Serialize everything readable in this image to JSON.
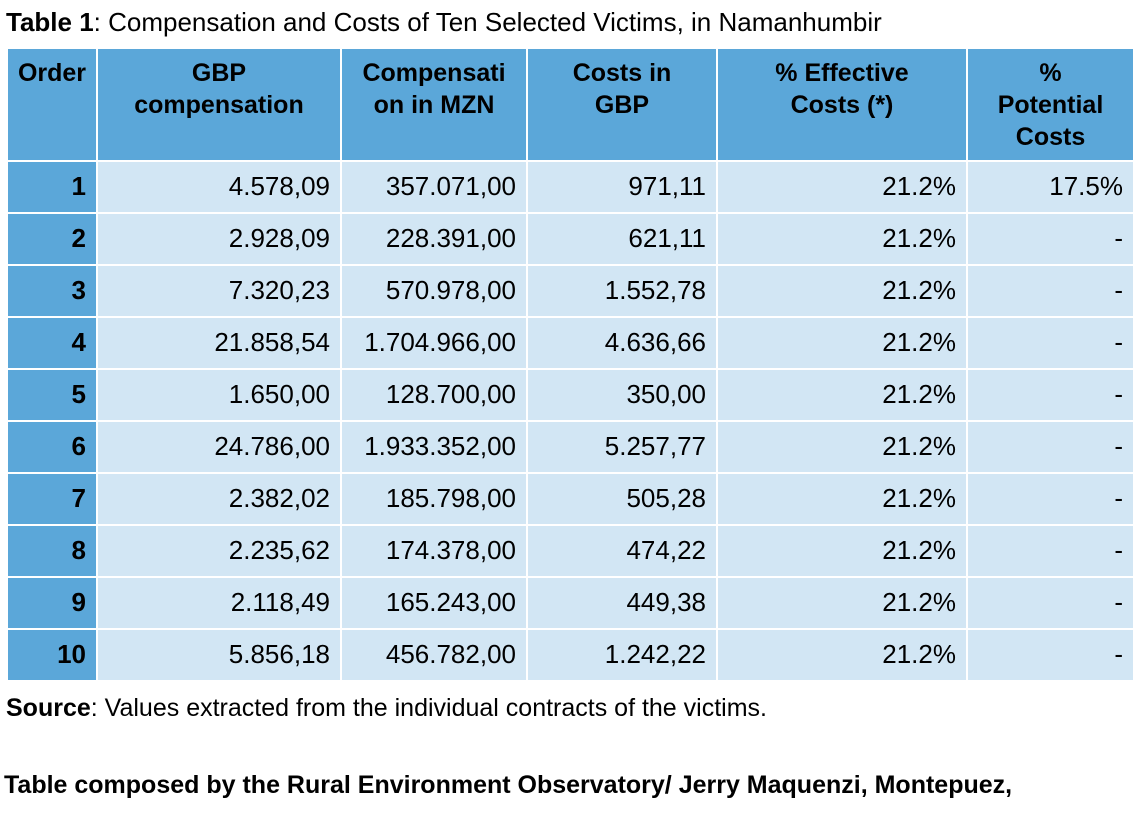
{
  "caption": {
    "bold": "Table 1",
    "rest": ": Compensation and Costs of Ten Selected Victims, in Namanhumbir"
  },
  "table": {
    "headers": [
      "Order",
      "GBP\ncompensation",
      "Compensati\non in MZN",
      "Costs in\nGBP",
      "% Effective\nCosts (*)",
      "%\nPotential\nCosts"
    ],
    "rows": [
      {
        "cells": [
          "1",
          "4.578,09",
          "357.071,00",
          "971,11",
          "21.2%",
          "17.5%"
        ]
      },
      {
        "cells": [
          "2",
          "2.928,09",
          "228.391,00",
          "621,11",
          "21.2%",
          "-"
        ]
      },
      {
        "cells": [
          "3",
          "7.320,23",
          "570.978,00",
          "1.552,78",
          "21.2%",
          "-"
        ]
      },
      {
        "cells": [
          "4",
          "21.858,54",
          "1.704.966,00",
          "4.636,66",
          "21.2%",
          "-"
        ]
      },
      {
        "cells": [
          "5",
          "1.650,00",
          "128.700,00",
          "350,00",
          "21.2%",
          "-"
        ]
      },
      {
        "cells": [
          "6",
          "24.786,00",
          "1.933.352,00",
          "5.257,77",
          "21.2%",
          "-"
        ]
      },
      {
        "cells": [
          "7",
          "2.382,02",
          "185.798,00",
          "505,28",
          "21.2%",
          "-"
        ]
      },
      {
        "cells": [
          "8",
          "2.235,62",
          "174.378,00",
          "474,22",
          "21.2%",
          "-"
        ]
      },
      {
        "cells": [
          "9",
          "2.118,49",
          "165.243,00",
          "449,38",
          "21.2%",
          "-"
        ]
      },
      {
        "cells": [
          "10",
          "5.856,18",
          "456.782,00",
          "1.242,22",
          "21.2%",
          "-"
        ]
      }
    ]
  },
  "source": {
    "bold": "Source",
    "rest": ": Values extracted from the individual contracts of the victims."
  },
  "attribution": "Table composed by the Rural Environment Observatory/ Jerry Maquenzi, Montepuez,",
  "colors": {
    "header_blue": "#5BA7D9",
    "row_blue": "#D2E6F4",
    "grid": "#FFFFFF",
    "text": "#000000"
  }
}
